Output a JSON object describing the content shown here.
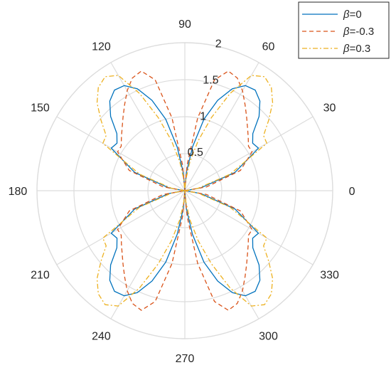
{
  "chart_data": {
    "type": "polar-line",
    "title": "",
    "theta_unit": "degrees",
    "theta_ticks": [
      0,
      30,
      60,
      90,
      120,
      150,
      180,
      210,
      240,
      270,
      300,
      330
    ],
    "theta_tick_labels": [
      "0",
      "30",
      "60",
      "90",
      "120",
      "150",
      "180",
      "210",
      "240",
      "270",
      "300",
      "330"
    ],
    "r_ticks": [
      0.5,
      1,
      1.5,
      2
    ],
    "r_tick_labels": [
      "0.5",
      "1",
      "1.5",
      "2"
    ],
    "rlim": [
      0,
      2
    ],
    "grid": true,
    "legend_position": "top-right",
    "legend": [
      {
        "symbol": "β",
        "text": "=0"
      },
      {
        "symbol": "β",
        "text": "=-0.3"
      },
      {
        "symbol": "β",
        "text": "=0.3"
      }
    ],
    "theta": [
      0,
      10,
      20,
      30,
      35,
      40,
      45,
      50,
      55,
      60,
      65,
      70,
      75,
      80,
      85,
      90
    ],
    "symmetry": "mirrored across the 90-270 axis and the 0-180 axis",
    "series": [
      {
        "name": "β=0",
        "color": "#0072BD",
        "style": "solid",
        "r": [
          0,
          0.22,
          0.72,
          1.15,
          1.12,
          1.2,
          1.42,
          1.58,
          1.66,
          1.64,
          1.52,
          1.3,
          1.0,
          0.6,
          0.25,
          0
        ]
      },
      {
        "name": "β=-0.3",
        "color": "#D95319",
        "style": "dashed",
        "r": [
          0,
          0.3,
          0.8,
          1.05,
          1.05,
          1.12,
          1.2,
          1.3,
          1.42,
          1.56,
          1.68,
          1.72,
          1.55,
          1.0,
          0.35,
          0
        ]
      },
      {
        "name": "β=0.3",
        "color": "#EDB120",
        "style": "dashdot",
        "r": [
          0,
          0.18,
          0.65,
          1.28,
          1.3,
          1.48,
          1.68,
          1.82,
          1.88,
          1.8,
          1.45,
          1.05,
          0.7,
          0.4,
          0.15,
          0
        ]
      }
    ]
  }
}
